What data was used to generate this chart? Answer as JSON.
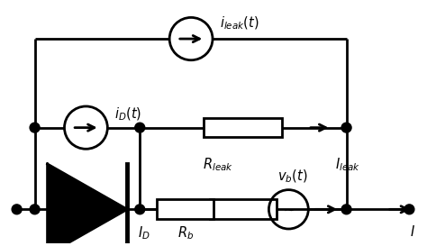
{
  "bg_color": "#ffffff",
  "line_color": "#000000",
  "lw": 2.0,
  "figsize": [
    4.74,
    2.73
  ],
  "dpi": 100,
  "xlim": [
    0,
    4.74
  ],
  "ylim": [
    0,
    2.73
  ]
}
